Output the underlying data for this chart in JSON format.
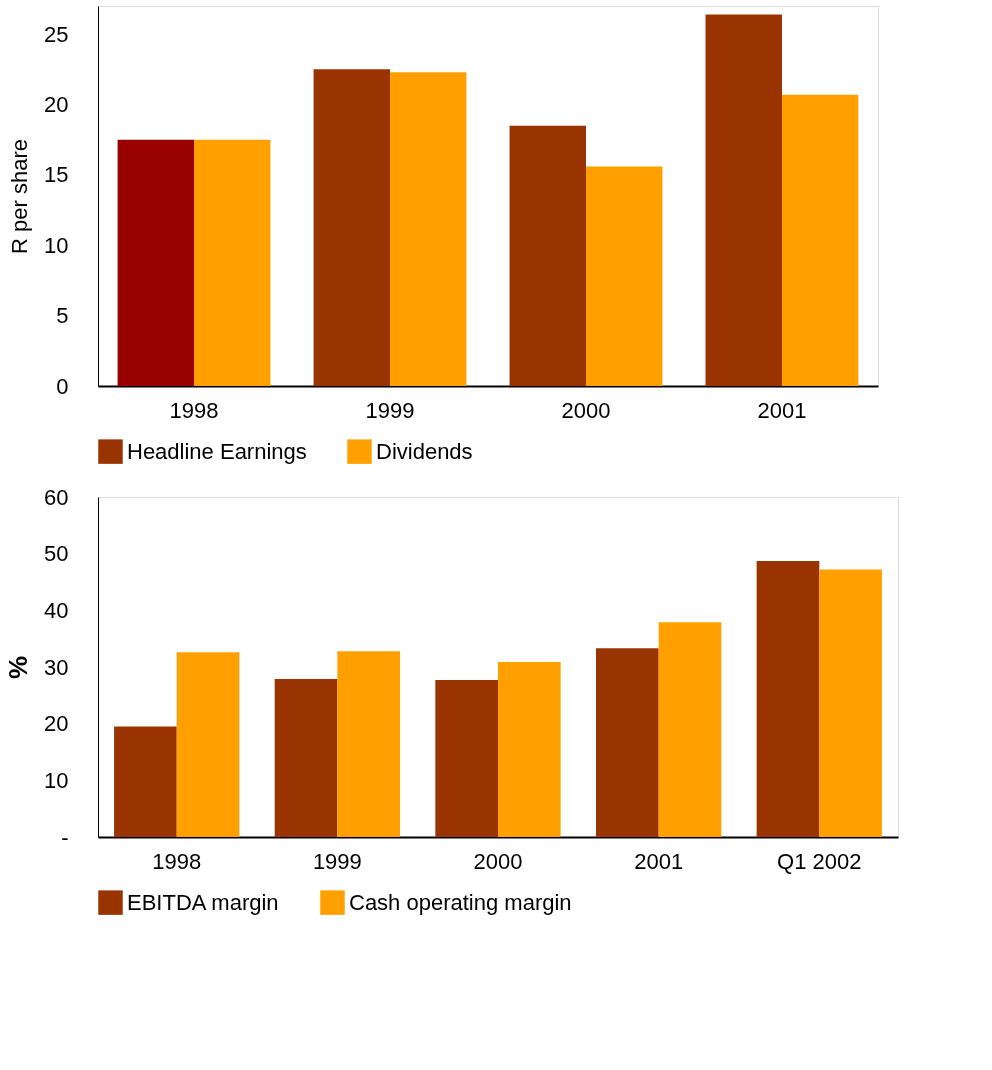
{
  "chart_data": [
    {
      "type": "bar",
      "ylabel": "R per share",
      "categories": [
        "1998",
        "1999",
        "2000",
        "2001"
      ],
      "series": [
        {
          "name": "Headline Earnings",
          "color": "#993300",
          "colors": [
            "#990000",
            "#993300",
            "#993300",
            "#993300"
          ],
          "values": [
            17.5,
            22.5,
            18.5,
            26.4
          ]
        },
        {
          "name": "Dividends",
          "color": "#ffa000",
          "values": [
            17.5,
            22.3,
            15.6,
            20.7
          ]
        }
      ],
      "ylim": [
        0,
        27
      ],
      "yticks": [
        0,
        5,
        10,
        15,
        20,
        25
      ],
      "grid": false,
      "legend": "bottom"
    },
    {
      "type": "bar",
      "ylabel": "%",
      "categories": [
        "1998",
        "1999",
        "2000",
        "2001",
        "Q1 2002"
      ],
      "series": [
        {
          "name": "EBITDA margin",
          "color": "#993300",
          "values": [
            19.5,
            27.9,
            27.7,
            33.3,
            48.7
          ]
        },
        {
          "name": "Cash operating margin",
          "color": "#ffa000",
          "values": [
            32.6,
            32.8,
            30.9,
            37.9,
            47.2
          ]
        }
      ],
      "ylim": [
        0,
        60
      ],
      "yticks": [
        {
          "value": 0,
          "label": "-"
        },
        10,
        20,
        30,
        40,
        50,
        60
      ],
      "grid": false,
      "legend": "bottom"
    }
  ]
}
